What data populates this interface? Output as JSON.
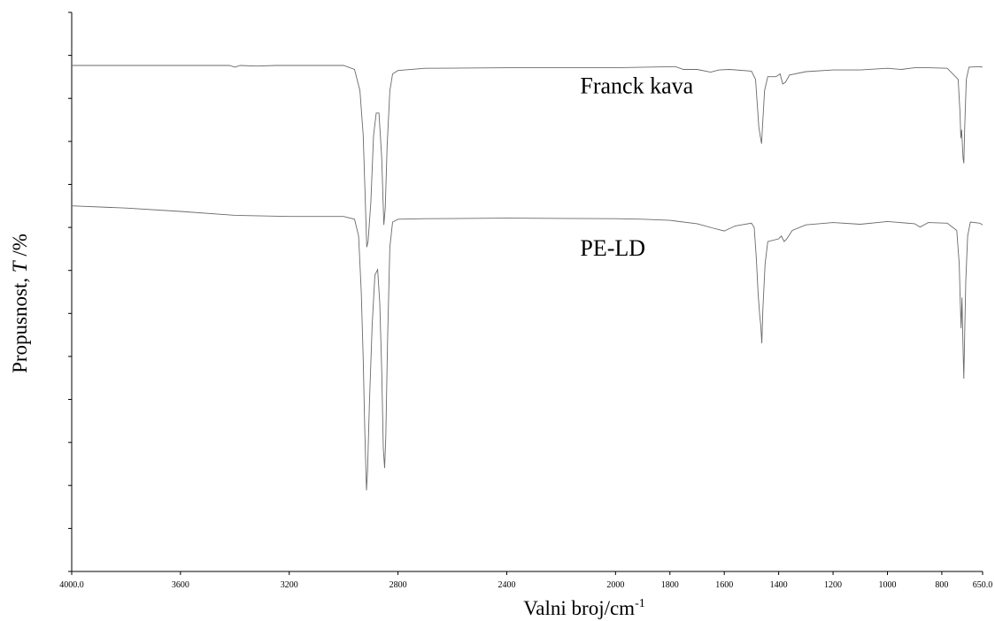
{
  "chart_data": {
    "type": "line",
    "xlabel": "Valni broj/cm",
    "xlabel_sup": "-1",
    "ylabel": "Propusnost, ",
    "ylabel_italic": "T",
    "ylabel_unit": " /%",
    "xlim": [
      4000.0,
      650.0
    ],
    "x_reversed": true,
    "x_tick_labels": [
      {
        "value": 4000,
        "text": "4000.0"
      },
      {
        "value": 3600,
        "text": "3600"
      },
      {
        "value": 3200,
        "text": "3200"
      },
      {
        "value": 2800,
        "text": "2800"
      },
      {
        "value": 2400,
        "text": "2400"
      },
      {
        "value": 2000,
        "text": "2000"
      },
      {
        "value": 1800,
        "text": "1800"
      },
      {
        "value": 1600,
        "text": "1600"
      },
      {
        "value": 1400,
        "text": "1400"
      },
      {
        "value": 1200,
        "text": "1200"
      },
      {
        "value": 1000,
        "text": "1000"
      },
      {
        "value": 800,
        "text": "800"
      },
      {
        "value": 650,
        "text": "650.0"
      }
    ],
    "ylim": [
      0,
      100
    ],
    "y_tick_count": 14,
    "y_tick_labels_shown": false,
    "grid": false,
    "series": [
      {
        "name": "Franck kava",
        "points": [
          [
            4000,
            90.5
          ],
          [
            3700,
            90.5
          ],
          [
            3420,
            90.5
          ],
          [
            3400,
            90.2
          ],
          [
            3380,
            90.5
          ],
          [
            3320,
            90.4
          ],
          [
            3250,
            90.5
          ],
          [
            3000,
            90.5
          ],
          [
            2960,
            89.8
          ],
          [
            2940,
            86
          ],
          [
            2928,
            78
          ],
          [
            2920,
            66
          ],
          [
            2915,
            58
          ],
          [
            2910,
            59
          ],
          [
            2900,
            66
          ],
          [
            2890,
            78
          ],
          [
            2880,
            82
          ],
          [
            2870,
            82
          ],
          [
            2860,
            74
          ],
          [
            2852,
            62
          ],
          [
            2847,
            65
          ],
          [
            2840,
            76
          ],
          [
            2830,
            86
          ],
          [
            2820,
            89
          ],
          [
            2800,
            89.6
          ],
          [
            2700,
            90
          ],
          [
            2400,
            90.1
          ],
          [
            2000,
            90.1
          ],
          [
            1780,
            90.3
          ],
          [
            1750,
            89.8
          ],
          [
            1700,
            89.8
          ],
          [
            1650,
            89.3
          ],
          [
            1620,
            89.7
          ],
          [
            1580,
            89.8
          ],
          [
            1500,
            89.5
          ],
          [
            1485,
            88
          ],
          [
            1478,
            83
          ],
          [
            1473,
            79.5
          ],
          [
            1468,
            78
          ],
          [
            1463,
            76.5
          ],
          [
            1459,
            80
          ],
          [
            1452,
            86
          ],
          [
            1440,
            88.5
          ],
          [
            1410,
            88.5
          ],
          [
            1395,
            89
          ],
          [
            1385,
            87.2
          ],
          [
            1375,
            87.5
          ],
          [
            1360,
            88.8
          ],
          [
            1300,
            89.4
          ],
          [
            1200,
            89.7
          ],
          [
            1100,
            89.7
          ],
          [
            1000,
            90
          ],
          [
            950,
            89.8
          ],
          [
            900,
            90.1
          ],
          [
            850,
            90.1
          ],
          [
            780,
            90
          ],
          [
            740,
            88
          ],
          [
            733,
            82
          ],
          [
            730,
            77.5
          ],
          [
            727,
            79
          ],
          [
            722,
            74
          ],
          [
            719,
            73
          ],
          [
            716,
            79
          ],
          [
            710,
            88
          ],
          [
            700,
            90.2
          ],
          [
            660,
            90.3
          ],
          [
            650,
            90.2
          ]
        ]
      },
      {
        "name": "PE-LD",
        "points": [
          [
            4000,
            65.4
          ],
          [
            3800,
            65
          ],
          [
            3600,
            64.4
          ],
          [
            3400,
            63.7
          ],
          [
            3200,
            63.5
          ],
          [
            3000,
            63.5
          ],
          [
            2960,
            63
          ],
          [
            2945,
            60
          ],
          [
            2935,
            50
          ],
          [
            2928,
            38
          ],
          [
            2922,
            25
          ],
          [
            2916,
            14.5
          ],
          [
            2912,
            18
          ],
          [
            2905,
            30
          ],
          [
            2895,
            44
          ],
          [
            2885,
            53
          ],
          [
            2875,
            54
          ],
          [
            2867,
            48
          ],
          [
            2860,
            36
          ],
          [
            2854,
            22
          ],
          [
            2849,
            18.5
          ],
          [
            2845,
            24
          ],
          [
            2838,
            42
          ],
          [
            2830,
            58
          ],
          [
            2820,
            62.5
          ],
          [
            2800,
            63
          ],
          [
            2700,
            63.1
          ],
          [
            2400,
            63.2
          ],
          [
            2000,
            63.1
          ],
          [
            1900,
            63
          ],
          [
            1800,
            62.8
          ],
          [
            1700,
            62.2
          ],
          [
            1640,
            61.4
          ],
          [
            1600,
            60.9
          ],
          [
            1560,
            61.8
          ],
          [
            1500,
            62.3
          ],
          [
            1490,
            61.5
          ],
          [
            1482,
            56
          ],
          [
            1476,
            50
          ],
          [
            1470,
            46
          ],
          [
            1466,
            44
          ],
          [
            1462,
            40.8
          ],
          [
            1458,
            47
          ],
          [
            1450,
            55
          ],
          [
            1440,
            59
          ],
          [
            1400,
            59.5
          ],
          [
            1390,
            60
          ],
          [
            1380,
            59
          ],
          [
            1370,
            59.5
          ],
          [
            1350,
            61
          ],
          [
            1300,
            62
          ],
          [
            1200,
            62.4
          ],
          [
            1100,
            62.1
          ],
          [
            1000,
            62.6
          ],
          [
            900,
            62.2
          ],
          [
            880,
            61.6
          ],
          [
            850,
            62.4
          ],
          [
            780,
            62.3
          ],
          [
            745,
            61
          ],
          [
            736,
            55
          ],
          [
            732,
            48
          ],
          [
            729,
            43.5
          ],
          [
            726,
            49
          ],
          [
            722,
            40
          ],
          [
            719,
            34.5
          ],
          [
            716,
            42
          ],
          [
            712,
            52
          ],
          [
            705,
            60
          ],
          [
            695,
            62.5
          ],
          [
            660,
            62.3
          ],
          [
            650,
            62
          ]
        ]
      }
    ],
    "annotations": [
      {
        "text": "Franck kava",
        "x": 2130,
        "y": 85.5
      },
      {
        "text": "PE-LD",
        "x": 2130,
        "y": 56.5
      }
    ]
  }
}
